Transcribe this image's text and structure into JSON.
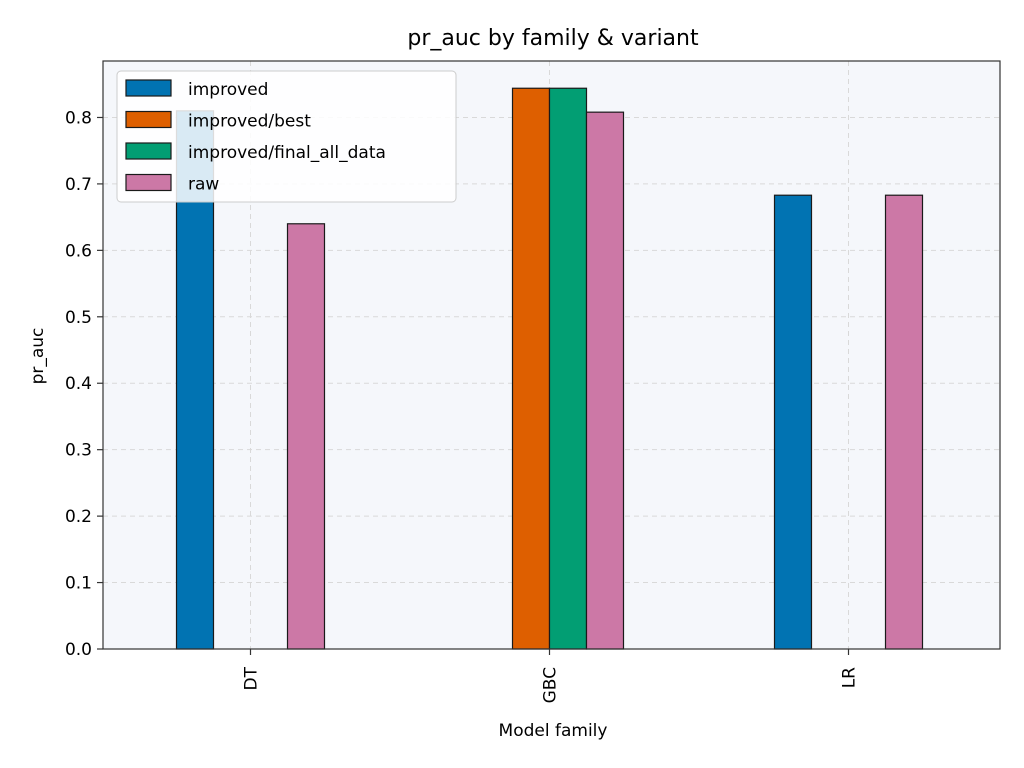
{
  "chart_data": {
    "type": "bar",
    "title": "pr_auc by family & variant",
    "xlabel": "Model family",
    "ylabel": "pr_auc",
    "categories": [
      "DT",
      "GBC",
      "LR"
    ],
    "ylim": [
      0,
      0.885
    ],
    "yticks": [
      "0.0",
      "0.1",
      "0.2",
      "0.3",
      "0.4",
      "0.5",
      "0.6",
      "0.7",
      "0.8"
    ],
    "grid": true,
    "legend_position": "top-left",
    "series": [
      {
        "name": "improved",
        "color": "#0173b2",
        "values": [
          0.81,
          null,
          0.683
        ]
      },
      {
        "name": "improved/best",
        "color": "#de5f00",
        "values": [
          null,
          0.844,
          null
        ]
      },
      {
        "name": "improved/final_all_data",
        "color": "#029e73",
        "values": [
          null,
          0.844,
          null
        ]
      },
      {
        "name": "raw",
        "color": "#cc78a6",
        "values": [
          0.64,
          0.808,
          0.683
        ]
      }
    ],
    "colors": {
      "plot_background": "#f5f7fb",
      "grid": "#d9d9d9",
      "bar_edge": "#1a1a1a"
    }
  }
}
